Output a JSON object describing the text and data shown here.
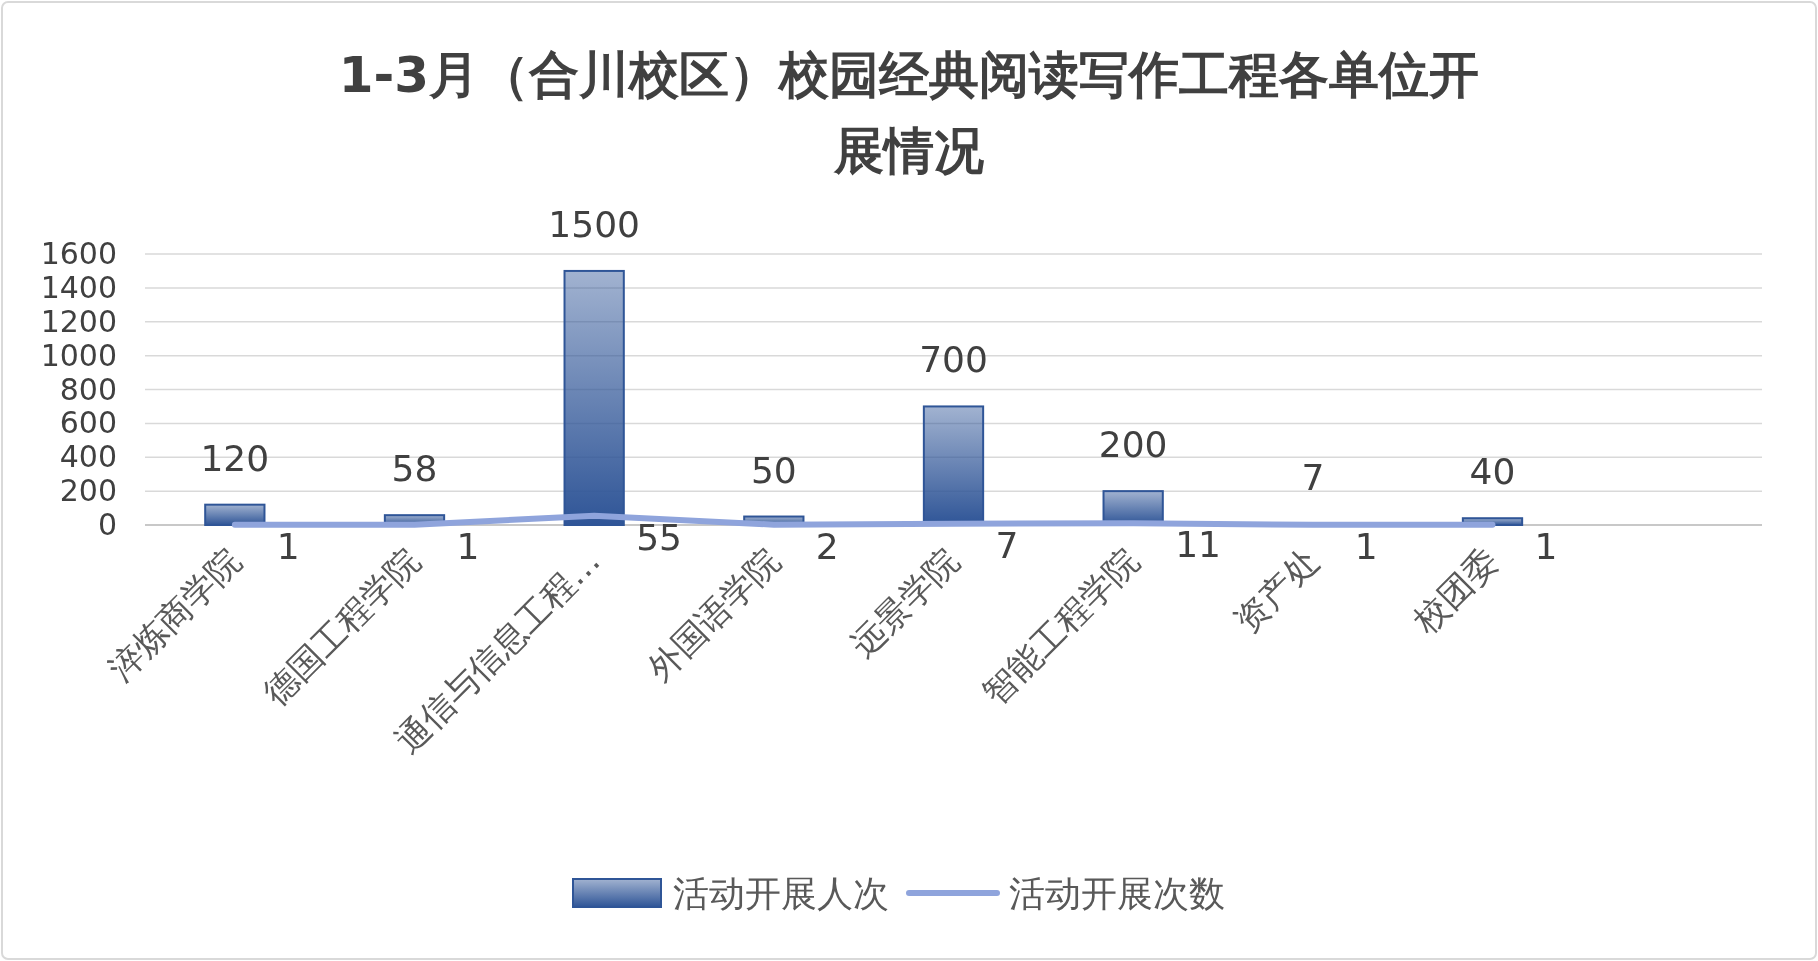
{
  "chart_data": {
    "type": "bar",
    "title": "1-3月（合川校区）校园经典阅读写作工程各单位开展情况",
    "categories": [
      "淬炼商学院",
      "德国工程学院",
      "通信与信息工程…",
      "外国语学院",
      "远景学院",
      "智能工程学院",
      "资产处",
      "校团委",
      null
    ],
    "series": [
      {
        "name": "活动开展人次",
        "color": "#2f5597",
        "values": [
          120,
          58,
          1500,
          50,
          700,
          200,
          7,
          40,
          null
        ]
      },
      {
        "name": "活动开展次数",
        "type": "line",
        "color": "#8fa4dc",
        "values": [
          1,
          1,
          55,
          2,
          7,
          11,
          1,
          1,
          null
        ]
      }
    ],
    "ylim": [
      0,
      1600
    ],
    "yticks": [
      0,
      200,
      400,
      600,
      800,
      1000,
      1200,
      1400,
      1600
    ],
    "grid": "y",
    "legend": "bottom",
    "data_labels": true,
    "marker": "none",
    "line_style": "solid"
  }
}
